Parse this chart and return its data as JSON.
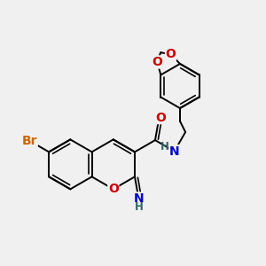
{
  "bg_color": "#f0f0f0",
  "bond_color": "#000000",
  "bond_width": 1.4,
  "atom_colors": {
    "Br": "#cc6600",
    "O": "#cc0000",
    "N": "#0000cc",
    "H_teal": "#336666",
    "C": "#000000"
  },
  "font_size": 10,
  "font_size_h": 8.5
}
